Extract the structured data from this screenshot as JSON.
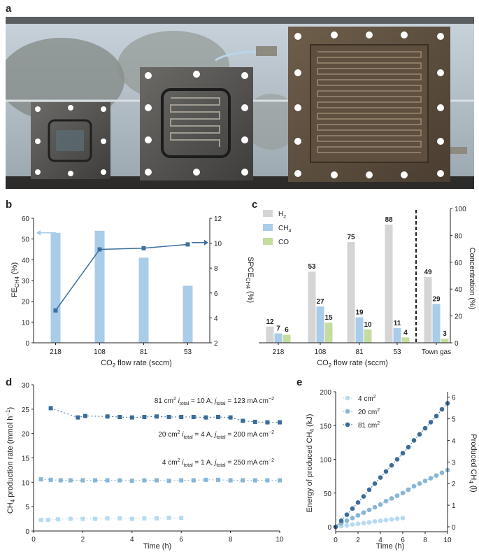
{
  "panels": {
    "a": "a",
    "b": "b",
    "c": "c",
    "d": "d",
    "e": "e"
  },
  "photo": {
    "description": "Three electrolyzer cells of increasing size on a window sill"
  },
  "colors": {
    "light_blue": "#a9cce8",
    "mid_blue": "#3d6f9e",
    "gray_bar": "#d5d5d5",
    "green_bar": "#c5dc9e",
    "series_4": "#b7daf1",
    "series_20": "#88b5d6",
    "series_81": "#3b6c9a"
  },
  "chart_data": [
    {
      "id": "b",
      "type": "bar",
      "categories": [
        "218",
        "108",
        "81",
        "53"
      ],
      "series": [
        {
          "name": "FE CH4 (%)",
          "axis": "left",
          "kind": "bar",
          "values": [
            53,
            54,
            41,
            27.5
          ]
        },
        {
          "name": "SPCE CH4 (%)",
          "axis": "right",
          "kind": "line",
          "values": [
            4.6,
            9.5,
            9.6,
            9.9
          ]
        }
      ],
      "xlabel": "CO2 flow rate (sccm)",
      "xlabel_main": "CO",
      "xlabel_sub": "2",
      "xlabel_rest": " flow rate (sccm)",
      "ylabel_left_main": "FE",
      "ylabel_left_sub": "CH4",
      "ylabel_left_rest": " (%)",
      "ylabel_right_main": "SPCE",
      "ylabel_right_sub": "CH4",
      "ylabel_right_rest": " (%)",
      "ylim_left": [
        0,
        60
      ],
      "yticks_left": [
        "0",
        "10",
        "20",
        "30",
        "40",
        "50",
        "60"
      ],
      "ylim_right": [
        2,
        12
      ],
      "yticks_right": [
        "2",
        "4",
        "6",
        "8",
        "10",
        "12"
      ]
    },
    {
      "id": "c",
      "type": "bar",
      "categories": [
        "218",
        "108",
        "81",
        "53",
        "Town gas"
      ],
      "series": [
        {
          "name": "H2",
          "legend_main": "H",
          "legend_sub": "2",
          "values": [
            12,
            53,
            75,
            88,
            49
          ],
          "labels": [
            "12",
            "53",
            "75",
            "88",
            "49"
          ]
        },
        {
          "name": "CH4",
          "legend_main": "CH",
          "legend_sub": "4",
          "values": [
            7,
            27,
            19,
            11,
            29
          ],
          "labels": [
            "7",
            "27",
            "19",
            "11",
            "29"
          ]
        },
        {
          "name": "CO",
          "legend_main": "CO",
          "legend_sub": "",
          "values": [
            6,
            15,
            10,
            4,
            3
          ],
          "labels": [
            "6",
            "15",
            "10",
            "4",
            "3"
          ]
        }
      ],
      "xlabel": "CO2 flow rate (sccm)",
      "xlabel_main": "CO",
      "xlabel_sub": "2",
      "xlabel_rest": " flow rate (sccm)",
      "ylabel": "Concentration (%)",
      "ylim": [
        0,
        100
      ],
      "yticks": [
        "0",
        "20",
        "40",
        "60",
        "80",
        "100"
      ]
    },
    {
      "id": "d",
      "type": "scatter",
      "series": [
        {
          "name": "81 cm2",
          "x": [
            0.7,
            1.8,
            2.1,
            3.0,
            3.5,
            4.0,
            4.5,
            5.0,
            5.5,
            6.0,
            6.5,
            7.0,
            7.5,
            8.0,
            8.5,
            9.0,
            9.5,
            10.0
          ],
          "y": [
            25.2,
            23.3,
            23.6,
            23.5,
            23.4,
            23.3,
            23.4,
            23.5,
            23.4,
            23.4,
            23.4,
            23.3,
            23.4,
            23.3,
            22.6,
            22.4,
            22.3,
            22.3
          ],
          "annotation": {
            "area": "81 cm",
            "sup": "2",
            "i1": "i",
            "s1": "total",
            "e1": " = 10 A, ",
            "i2": "j",
            "s2": "total",
            "e2": " = 123 mA cm",
            "sup2": "−2"
          }
        },
        {
          "name": "20 cm2",
          "x": [
            0.3,
            0.7,
            1.1,
            1.5,
            2.0,
            2.5,
            3.0,
            3.5,
            4.0,
            4.5,
            5.0,
            5.5,
            6.0,
            6.5,
            7.0,
            7.5,
            8.0,
            8.5,
            9.0,
            9.5,
            10.0
          ],
          "y": [
            10.6,
            10.5,
            10.4,
            10.4,
            10.4,
            10.4,
            10.4,
            10.4,
            10.3,
            10.4,
            10.4,
            10.3,
            10.4,
            10.4,
            10.5,
            10.5,
            10.4,
            10.4,
            10.4,
            10.4,
            10.4
          ],
          "annotation": {
            "area": "20 cm",
            "sup": "2",
            "i1": "i",
            "s1": "total",
            "e1": " = 4 A, ",
            "i2": "j",
            "s2": "total",
            "e2": " = 200 mA cm",
            "sup2": "−2"
          }
        },
        {
          "name": "4 cm2",
          "x": [
            0.3,
            0.6,
            1.0,
            1.5,
            2.0,
            2.5,
            3.0,
            3.5,
            4.0,
            4.5,
            5.0,
            5.5,
            6.0
          ],
          "y": [
            2.3,
            2.3,
            2.4,
            2.5,
            2.5,
            2.5,
            2.6,
            2.6,
            2.5,
            2.6,
            2.6,
            2.7,
            2.7
          ],
          "annotation": {
            "area": "4 cm",
            "sup": "2",
            "i1": "i",
            "s1": "total",
            "e1": " = 1 A, ",
            "i2": "j",
            "s2": "total",
            "e2": " = 250 mA cm",
            "sup2": "−2"
          }
        }
      ],
      "xlabel": "Time (h)",
      "ylabel_main": "CH",
      "ylabel_sub": "4",
      "ylabel_rest": " production rate (mmol h",
      "ylabel_sup": "−1",
      "ylabel_end": ")",
      "xlim": [
        0,
        10
      ],
      "xticks": [
        "0",
        "2",
        "4",
        "6",
        "8",
        "10"
      ],
      "ylim": [
        0,
        30
      ],
      "yticks": [
        "0",
        "5",
        "10",
        "15",
        "20",
        "25",
        "30"
      ]
    },
    {
      "id": "e",
      "type": "scatter",
      "series": [
        {
          "name": "4 cm2",
          "legend_main": "4 cm",
          "legend_sup": "2",
          "x": [
            0,
            0.5,
            1.0,
            1.5,
            2.0,
            2.5,
            3.0,
            3.5,
            4.0,
            4.5,
            5.0,
            5.5,
            6.0
          ],
          "y": [
            0,
            1,
            2,
            3.5,
            4.5,
            5.5,
            6.5,
            8,
            9,
            10,
            11,
            12,
            13
          ]
        },
        {
          "name": "20 cm2",
          "legend_main": "20 cm",
          "legend_sup": "2",
          "x": [
            0,
            0.5,
            1.0,
            1.5,
            2.0,
            2.5,
            3.0,
            3.5,
            4.0,
            4.5,
            5.0,
            5.5,
            6.0,
            6.5,
            7.0,
            7.5,
            8.0,
            8.5,
            9.0,
            9.5,
            10.0
          ],
          "y": [
            0,
            5,
            9,
            13,
            17,
            21,
            25,
            29,
            33,
            38,
            42,
            46,
            50,
            55,
            60,
            64,
            68,
            72,
            76,
            80,
            84
          ]
        },
        {
          "name": "81 cm2",
          "legend_main": "81 cm",
          "legend_sup": "2",
          "x": [
            0,
            0.5,
            1.0,
            1.5,
            2.0,
            2.5,
            3.0,
            3.5,
            4.0,
            4.5,
            5.0,
            5.5,
            6.0,
            6.5,
            7.0,
            7.5,
            8.0,
            8.5,
            9.0,
            9.5,
            10.0
          ],
          "y": [
            0,
            9,
            18,
            27,
            36,
            45,
            55,
            64,
            73,
            82,
            91,
            100,
            109,
            118,
            128,
            137,
            146,
            155,
            164,
            174,
            183
          ]
        }
      ],
      "xlabel": "Time (h)",
      "ylabel_left_main": "Energy of produced CH",
      "ylabel_left_sub": "4",
      "ylabel_left_rest": " (kJ)",
      "ylabel_right_main": "Produced CH",
      "ylabel_right_sub": "4",
      "ylabel_right_rest": " (l)",
      "xlim": [
        0,
        10
      ],
      "xticks": [
        "0",
        "2",
        "4",
        "6",
        "8",
        "10"
      ],
      "ylim_left": [
        0,
        200
      ],
      "yticks_left": [
        "0",
        "50",
        "100",
        "150",
        "200"
      ],
      "ylim_right": [
        0,
        6.25
      ],
      "yticks_right": [
        "0",
        "1",
        "2",
        "3",
        "4",
        "5",
        "6"
      ]
    }
  ]
}
